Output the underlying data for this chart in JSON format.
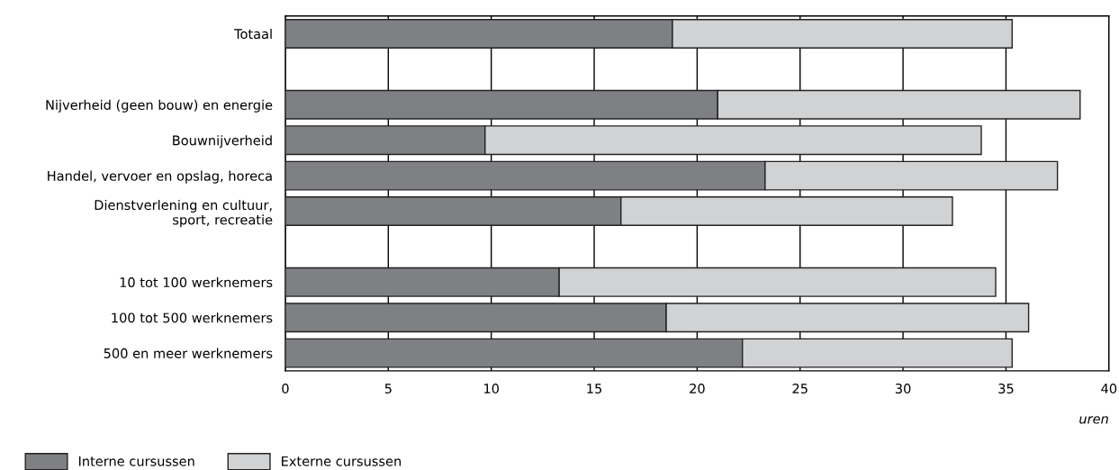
{
  "chart_data": {
    "type": "bar",
    "orientation": "horizontal",
    "stacked": true,
    "categories": [
      "Totaal",
      null,
      "Nijverheid (geen bouw) en energie",
      "Bouwnijverheid",
      "Handel, vervoer en opslag, horeca",
      "Dienstverlening en cultuur,\nsport, recreatie",
      null,
      "10 tot 100 werknemers",
      "100 tot 500 werknemers",
      "500 en meer werknemers"
    ],
    "series": [
      {
        "name": "Interne cursussen",
        "color": "#7f8083",
        "values": [
          18.8,
          null,
          21.0,
          9.7,
          23.3,
          16.3,
          null,
          13.3,
          18.5,
          22.2
        ]
      },
      {
        "name": "Externe cursussen",
        "color": "#d1d2d4",
        "values": [
          16.5,
          null,
          17.6,
          24.1,
          14.2,
          16.1,
          null,
          21.2,
          17.6,
          13.1
        ]
      }
    ],
    "xlabel": "uren",
    "xlim": [
      0,
      40
    ],
    "xticks": [
      0,
      5,
      10,
      15,
      20,
      25,
      30,
      35,
      40
    ],
    "grid": "x",
    "legend": "bottom left"
  }
}
